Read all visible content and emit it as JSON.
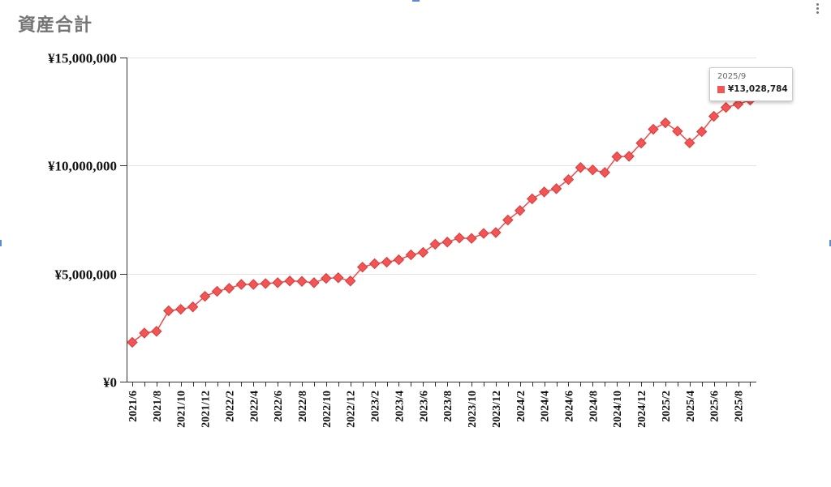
{
  "title": "資産合計",
  "tooltip": {
    "label": "2025/9",
    "value": "¥13,028,784"
  },
  "colors": {
    "series": "#f04a4a",
    "marker_fill": "#f25555",
    "frame": "#5b8bd8"
  },
  "chart_data": {
    "type": "line",
    "title": "資産合計",
    "x": [
      "2021/6",
      "2021/7",
      "2021/8",
      "2021/9",
      "2021/10",
      "2021/11",
      "2021/12",
      "2022/1",
      "2022/2",
      "2022/3",
      "2022/4",
      "2022/5",
      "2022/6",
      "2022/7",
      "2022/8",
      "2022/9",
      "2022/10",
      "2022/11",
      "2022/12",
      "2023/1",
      "2023/2",
      "2023/3",
      "2023/4",
      "2023/5",
      "2023/6",
      "2023/7",
      "2023/8",
      "2023/9",
      "2023/10",
      "2023/11",
      "2023/12",
      "2024/1",
      "2024/2",
      "2024/3",
      "2024/4",
      "2024/5",
      "2024/6",
      "2024/7",
      "2024/8",
      "2024/9",
      "2024/10",
      "2024/11",
      "2024/12",
      "2025/1",
      "2025/2",
      "2025/3",
      "2025/4",
      "2025/5",
      "2025/6",
      "2025/7",
      "2025/8",
      "2025/9"
    ],
    "x_tick_labels": [
      "2021/6",
      "2021/8",
      "2021/10",
      "2021/12",
      "2022/2",
      "2022/4",
      "2022/6",
      "2022/8",
      "2022/10",
      "2022/12",
      "2023/2",
      "2023/4",
      "2023/6",
      "2023/8",
      "2023/10",
      "2023/12",
      "2024/2",
      "2024/4",
      "2024/6",
      "2024/8",
      "2024/10",
      "2024/12",
      "2025/2",
      "2025/4",
      "2025/6",
      "2025/8"
    ],
    "series": [
      {
        "values": [
          1820000,
          2250000,
          2330000,
          3280000,
          3350000,
          3460000,
          3950000,
          4180000,
          4320000,
          4500000,
          4500000,
          4540000,
          4580000,
          4660000,
          4640000,
          4580000,
          4780000,
          4810000,
          4660000,
          5300000,
          5460000,
          5530000,
          5640000,
          5870000,
          5980000,
          6360000,
          6460000,
          6650000,
          6630000,
          6860000,
          6900000,
          7480000,
          7920000,
          8460000,
          8780000,
          8930000,
          9350000,
          9910000,
          9800000,
          9680000,
          10410000,
          10430000,
          11040000,
          11680000,
          11980000,
          11590000,
          11050000,
          11570000,
          12280000,
          12690000,
          12840000,
          13028784
        ]
      }
    ],
    "y_tick_labels": [
      "¥0",
      "¥5,000,000",
      "¥10,000,000",
      "¥15,000,000"
    ],
    "y_ticks": [
      0,
      5000000,
      10000000,
      15000000
    ],
    "ylim": [
      0,
      15000000
    ],
    "grid": true,
    "legend": "none"
  }
}
